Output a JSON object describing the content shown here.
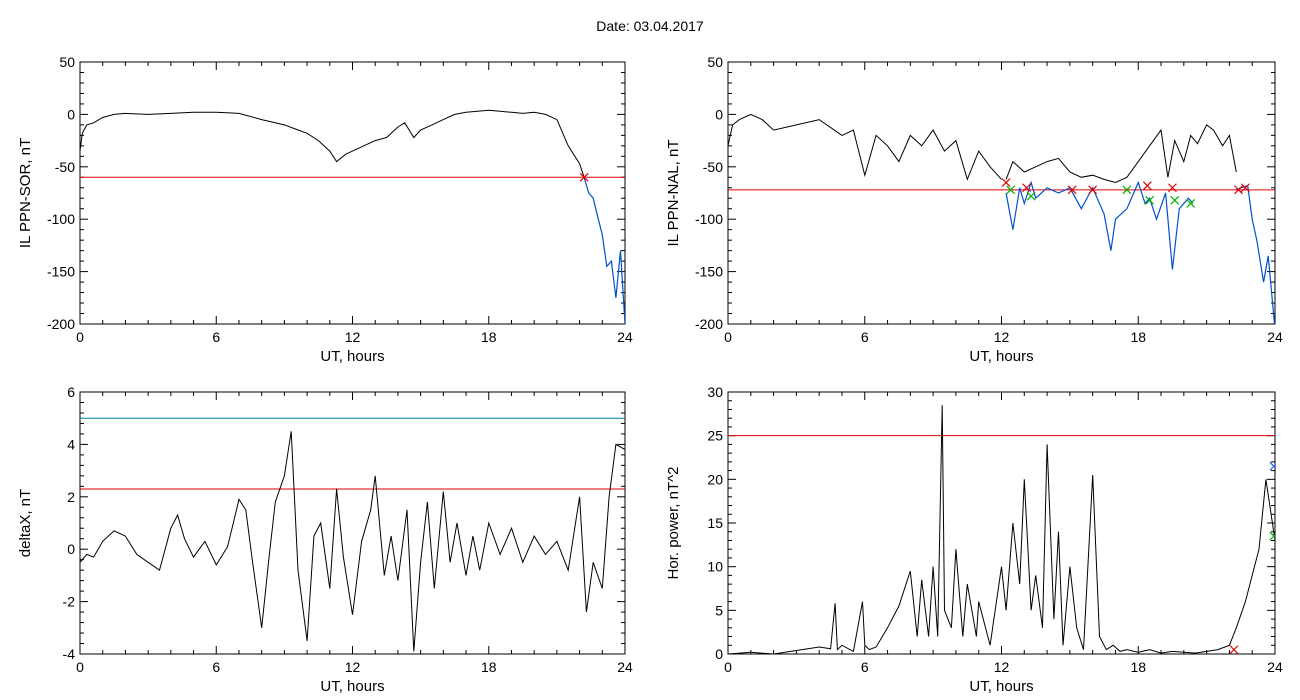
{
  "header": {
    "title": "Date:  03.04.2017"
  },
  "colors": {
    "series": "#000000",
    "threshold": "#e00000",
    "storm": "#0050d0",
    "limit": "#007a9a",
    "marker_red": "#e00000",
    "marker_green": "#00b000",
    "marker_blue": "#2060ff"
  },
  "chart_data": [
    {
      "type": "line",
      "ylabel": "IL PPN-SOR, nT",
      "xlabel": "UT, hours",
      "xlim": [
        0,
        24
      ],
      "ylim": [
        -200,
        50
      ],
      "xticks": [
        "0",
        "6",
        "12",
        "18",
        "24"
      ],
      "yticks": [
        "-200",
        "-150",
        "-100",
        "-50",
        "0",
        "50"
      ],
      "x": [
        0,
        0.1,
        0.3,
        0.6,
        1,
        1.5,
        2,
        3,
        4,
        5,
        6,
        7,
        8,
        9,
        9.5,
        10,
        10.5,
        11,
        11.3,
        11.7,
        12,
        12.5,
        13,
        13.5,
        14,
        14.3,
        14.7,
        15,
        15.5,
        16,
        16.5,
        17,
        17.5,
        18,
        18.5,
        19,
        19.5,
        20,
        20.5,
        21,
        21.5,
        22,
        22.2
      ],
      "values": [
        -35,
        -18,
        -10,
        -8,
        -3,
        0,
        1,
        0,
        1,
        2,
        2,
        1,
        -5,
        -10,
        -14,
        -18,
        -25,
        -35,
        -45,
        -38,
        -35,
        -30,
        -25,
        -22,
        -12,
        -8,
        -22,
        -15,
        -10,
        -5,
        0,
        2,
        3,
        4,
        3,
        2,
        1,
        2,
        0,
        -5,
        -30,
        -47,
        -60
      ],
      "storm_x": [
        22.2,
        22.4,
        22.6,
        22.8,
        23,
        23.2,
        23.4,
        23.6,
        23.8,
        24
      ],
      "storm_values": [
        -60,
        -75,
        -80,
        -98,
        -115,
        -145,
        -140,
        -175,
        -130,
        -200
      ],
      "threshold": -60,
      "markers": [
        {
          "x": 22.2,
          "y": -60,
          "color": "red"
        }
      ]
    },
    {
      "type": "line",
      "ylabel": "IL PPN-NAL, nT",
      "xlabel": "UT, hours",
      "xlim": [
        0,
        24
      ],
      "ylim": [
        -200,
        50
      ],
      "xticks": [
        "0",
        "6",
        "12",
        "18",
        "24"
      ],
      "yticks": [
        "-200",
        "-150",
        "-100",
        "-50",
        "0",
        "50"
      ],
      "x": [
        0,
        0.2,
        0.5,
        1,
        1.5,
        2,
        3,
        4,
        5,
        5.5,
        6,
        6.5,
        7,
        7.5,
        8,
        8.5,
        9,
        9.5,
        10,
        10.5,
        11,
        11.5,
        12
      ],
      "values": [
        -30,
        -10,
        -5,
        0,
        -5,
        -15,
        -10,
        -5,
        -20,
        -15,
        -58,
        -20,
        -30,
        -45,
        -20,
        -30,
        -15,
        -35,
        -25,
        -62,
        -35,
        -50,
        -62
      ],
      "storm_x": [
        12.2,
        12.5,
        12.8,
        13,
        13.3,
        13.5,
        14,
        14.5,
        15,
        15.5,
        15.8,
        16,
        16.5,
        16.8,
        17,
        17.5,
        18,
        18.3,
        18.5,
        18.8,
        19.2,
        19.5,
        19.8,
        20.2,
        20.4
      ],
      "storm_values": [
        -75,
        -110,
        -70,
        -85,
        -65,
        -80,
        -70,
        -75,
        -70,
        -90,
        -78,
        -70,
        -95,
        -130,
        -100,
        -90,
        -65,
        -85,
        -80,
        -100,
        -75,
        -148,
        -90,
        -80,
        -85
      ],
      "x2": [
        12.2,
        12.5,
        13,
        13.5,
        14,
        14.5,
        15,
        15.5,
        16,
        16.5,
        17,
        17.5,
        18,
        18.5,
        19,
        19.3,
        19.6,
        20,
        20.3,
        20.6,
        21,
        21.3,
        21.7,
        22,
        22.3
      ],
      "values2": [
        -62,
        -45,
        -55,
        -50,
        -45,
        -42,
        -55,
        -60,
        -58,
        -62,
        -65,
        -60,
        -45,
        -30,
        -15,
        -60,
        -25,
        -45,
        -20,
        -28,
        -10,
        -15,
        -30,
        -20,
        -55
      ],
      "storm2_x": [
        22.3,
        22.5,
        22.8,
        23,
        23.2,
        23.5,
        23.7,
        24
      ],
      "storm2_values": [
        -72,
        -70,
        -68,
        -100,
        -120,
        -160,
        -135,
        -205
      ],
      "threshold": -72,
      "markers": [
        {
          "x": 12.2,
          "y": -65,
          "color": "red"
        },
        {
          "x": 12.4,
          "y": -72,
          "color": "green"
        },
        {
          "x": 13.1,
          "y": -70,
          "color": "red"
        },
        {
          "x": 13.3,
          "y": -78,
          "color": "green"
        },
        {
          "x": 15.1,
          "y": -72,
          "color": "red"
        },
        {
          "x": 16.0,
          "y": -72,
          "color": "red"
        },
        {
          "x": 17.5,
          "y": -72,
          "color": "green"
        },
        {
          "x": 18.4,
          "y": -68,
          "color": "red"
        },
        {
          "x": 18.5,
          "y": -82,
          "color": "green"
        },
        {
          "x": 19.5,
          "y": -70,
          "color": "red"
        },
        {
          "x": 19.6,
          "y": -82,
          "color": "green"
        },
        {
          "x": 20.3,
          "y": -85,
          "color": "green"
        },
        {
          "x": 22.4,
          "y": -72,
          "color": "red"
        },
        {
          "x": 22.7,
          "y": -70,
          "color": "red"
        }
      ]
    },
    {
      "type": "line",
      "ylabel": "deltaX, nT",
      "xlabel": "UT, hours",
      "xlim": [
        0,
        24
      ],
      "ylim": [
        -4,
        6
      ],
      "xticks": [
        "0",
        "6",
        "12",
        "18",
        "24"
      ],
      "yticks": [
        "-4",
        "-2",
        "0",
        "2",
        "4",
        "6"
      ],
      "x": [
        0,
        0.3,
        0.6,
        1,
        1.5,
        2,
        2.5,
        3,
        3.5,
        4,
        4.3,
        4.6,
        5,
        5.5,
        6,
        6.5,
        7,
        7.3,
        7.6,
        8,
        8.3,
        8.6,
        9,
        9.3,
        9.6,
        10,
        10.3,
        10.6,
        11,
        11.3,
        11.6,
        12,
        12.4,
        12.8,
        13,
        13.4,
        13.7,
        14,
        14.4,
        14.7,
        15,
        15.3,
        15.6,
        16,
        16.3,
        16.6,
        17,
        17.3,
        17.6,
        18,
        18.5,
        19,
        19.5,
        20,
        20.5,
        21,
        21.5,
        22,
        22.3,
        22.6,
        23,
        23.3,
        23.6,
        24
      ],
      "values": [
        -0.5,
        -0.2,
        -0.3,
        0.3,
        0.7,
        0.5,
        -0.2,
        -0.5,
        -0.8,
        0.8,
        1.3,
        0.4,
        -0.3,
        0.3,
        -0.6,
        0.1,
        1.9,
        1.5,
        -0.5,
        -3.0,
        -0.5,
        1.8,
        2.8,
        4.5,
        -0.8,
        -3.5,
        0.5,
        1.0,
        -1.5,
        2.3,
        -0.3,
        -2.5,
        0.3,
        1.5,
        2.8,
        -1.0,
        0.5,
        -1.2,
        1.5,
        -3.9,
        -0.5,
        1.8,
        -1.5,
        2.2,
        -0.5,
        1.0,
        -1.0,
        0.5,
        -0.8,
        1.0,
        -0.2,
        0.8,
        -0.5,
        0.5,
        -0.2,
        0.3,
        -0.8,
        2.0,
        -2.4,
        -0.5,
        -1.5,
        2.0,
        4.0,
        3.8
      ],
      "threshold": 2.3,
      "limit": 5.0
    },
    {
      "type": "line",
      "ylabel": "Hor. power, nT^2",
      "xlabel": "UT, hours",
      "xlim": [
        0,
        24
      ],
      "ylim": [
        0,
        30
      ],
      "xticks": [
        "0",
        "6",
        "12",
        "18",
        "24"
      ],
      "yticks": [
        "0",
        "5",
        "10",
        "15",
        "20",
        "25",
        "30"
      ],
      "x": [
        0,
        1,
        2,
        3,
        4,
        4.5,
        4.7,
        4.8,
        5,
        5.5,
        5.9,
        6,
        6.2,
        6.5,
        7,
        7.5,
        8,
        8.3,
        8.5,
        8.8,
        9,
        9.2,
        9.4,
        9.5,
        9.8,
        10,
        10.3,
        10.5,
        10.9,
        11,
        11.5,
        12,
        12.2,
        12.5,
        12.8,
        13,
        13.3,
        13.5,
        13.8,
        14,
        14.3,
        14.5,
        14.7,
        15,
        15.3,
        15.6,
        16,
        16.3,
        16.6,
        16.9,
        17.2,
        17.5,
        18,
        18.5,
        19,
        19.5,
        20,
        20.5,
        21,
        21.5,
        22,
        22.3,
        22.7,
        23,
        23.3,
        23.6,
        24
      ],
      "values": [
        0,
        0.2,
        0,
        0.4,
        0.8,
        0.6,
        5.8,
        0.5,
        1.0,
        0.3,
        6.0,
        1.0,
        0.5,
        0.8,
        3.0,
        5.5,
        9.5,
        2.0,
        8.5,
        2.0,
        10.0,
        2.0,
        28.5,
        5.0,
        3.0,
        12.0,
        2.0,
        8.0,
        2.0,
        6.0,
        1.0,
        10.0,
        5.0,
        15.0,
        8.0,
        20.0,
        5.0,
        9.0,
        3.0,
        24.0,
        4.0,
        14.0,
        1.0,
        10.0,
        3.0,
        0.5,
        20.5,
        2.0,
        0.5,
        1.0,
        0.3,
        0.5,
        0.2,
        0.5,
        0.1,
        0.3,
        0.2,
        0.1,
        0.3,
        0.5,
        1.0,
        3.0,
        6.0,
        9.0,
        12.0,
        20.0,
        13.0
      ],
      "threshold": 25,
      "markers": [
        {
          "x": 22.2,
          "y": 0.5,
          "color": "red"
        },
        {
          "x": 23.95,
          "y": 21.5,
          "color": "blue"
        },
        {
          "x": 23.95,
          "y": 13.5,
          "color": "green"
        }
      ]
    }
  ]
}
